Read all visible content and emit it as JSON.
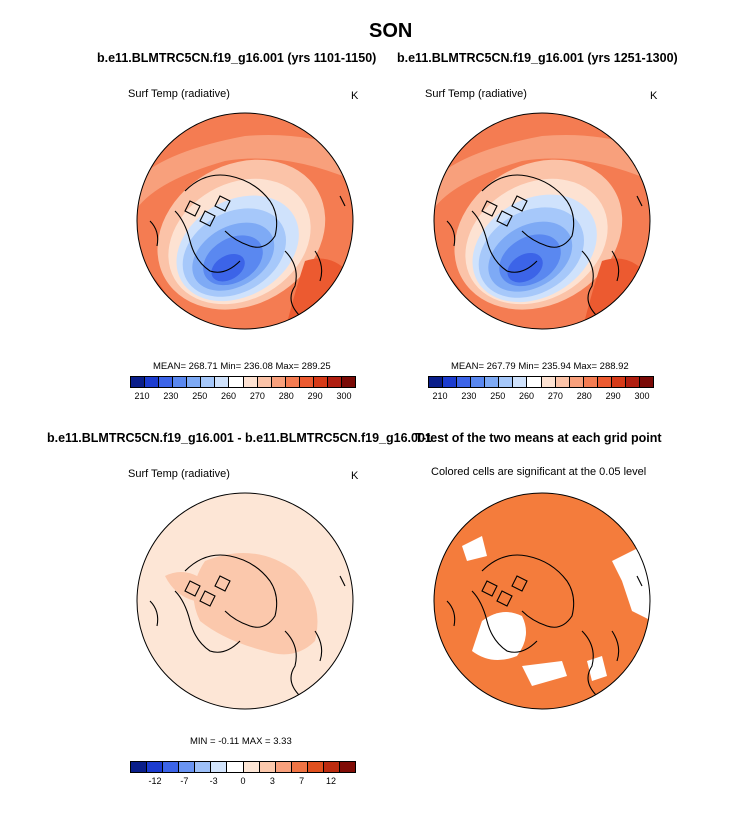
{
  "title": "SON",
  "chart_data": [
    {
      "type": "map",
      "panel": "top-left",
      "title": "b.e11.BLMTRC5CN.f19_g16.001 (yrs 1101-1150)",
      "variable": "Surf Temp (radiative)",
      "units": "K",
      "stats": {
        "mean": "268.71",
        "min": "236.08",
        "max": "289.25"
      },
      "stats_text": "MEAN= 268.71  Min= 236.08  Max= 289.25",
      "colorbar": {
        "ticks": [
          "210",
          "230",
          "250",
          "260",
          "270",
          "280",
          "290",
          "300"
        ],
        "colors": [
          "#0a1e8a",
          "#1c3cd0",
          "#3c64e8",
          "#5a88f0",
          "#7eaaf5",
          "#a6c8fa",
          "#cfe2fc",
          "#ffffff",
          "#fde2d2",
          "#fbc3a8",
          "#f8a07c",
          "#f47c52",
          "#ec5a30",
          "#d63a18",
          "#b01e10",
          "#7a0a06"
        ]
      },
      "fill": "mean surface temperature, cold (blue) over Arctic Ocean/Greenland, warm (orange-red) in mid-latitudes"
    },
    {
      "type": "map",
      "panel": "top-right",
      "title": "b.e11.BLMTRC5CN.f19_g16.001 (yrs 1251-1300)",
      "variable": "Surf Temp (radiative)",
      "units": "K",
      "stats": {
        "mean": "267.79",
        "min": "235.94",
        "max": "288.92"
      },
      "stats_text": "MEAN= 267.79  Min= 235.94  Max= 288.92",
      "colorbar": {
        "ticks": [
          "210",
          "230",
          "250",
          "260",
          "270",
          "280",
          "290",
          "300"
        ],
        "colors": [
          "#0a1e8a",
          "#1c3cd0",
          "#3c64e8",
          "#5a88f0",
          "#7eaaf5",
          "#a6c8fa",
          "#cfe2fc",
          "#ffffff",
          "#fde2d2",
          "#fbc3a8",
          "#f8a07c",
          "#f47c52",
          "#ec5a30",
          "#d63a18",
          "#b01e10",
          "#7a0a06"
        ]
      }
    },
    {
      "type": "map",
      "panel": "bottom-left",
      "title": "b.e11.BLMTRC5CN.f19_g16.001 - b.e11.BLMTRC5CN.f19_g16.001",
      "variable": "Surf Temp (radiative)",
      "units": "K",
      "stats": {
        "min": "-0.11",
        "max": "3.33"
      },
      "stats_text": "MIN =  -0.11  MAX =   3.33",
      "colorbar": {
        "ticks": [
          "-12",
          "-7",
          "-3",
          "0",
          "3",
          "7",
          "12"
        ],
        "colors": [
          "#0a1e8a",
          "#1c3cd0",
          "#3c64e8",
          "#6a94f2",
          "#9ec0f8",
          "#d2e4fc",
          "#ffffff",
          "#fde6d6",
          "#fbc8ac",
          "#f8a07c",
          "#f07444",
          "#e0501e",
          "#bc2c10",
          "#800c06"
        ]
      }
    },
    {
      "type": "map",
      "panel": "bottom-right",
      "title": "T-test of the two means at each grid point",
      "variable": "Colored cells are significant at the 0.05 level",
      "fill_color": "#f47c3c"
    }
  ]
}
